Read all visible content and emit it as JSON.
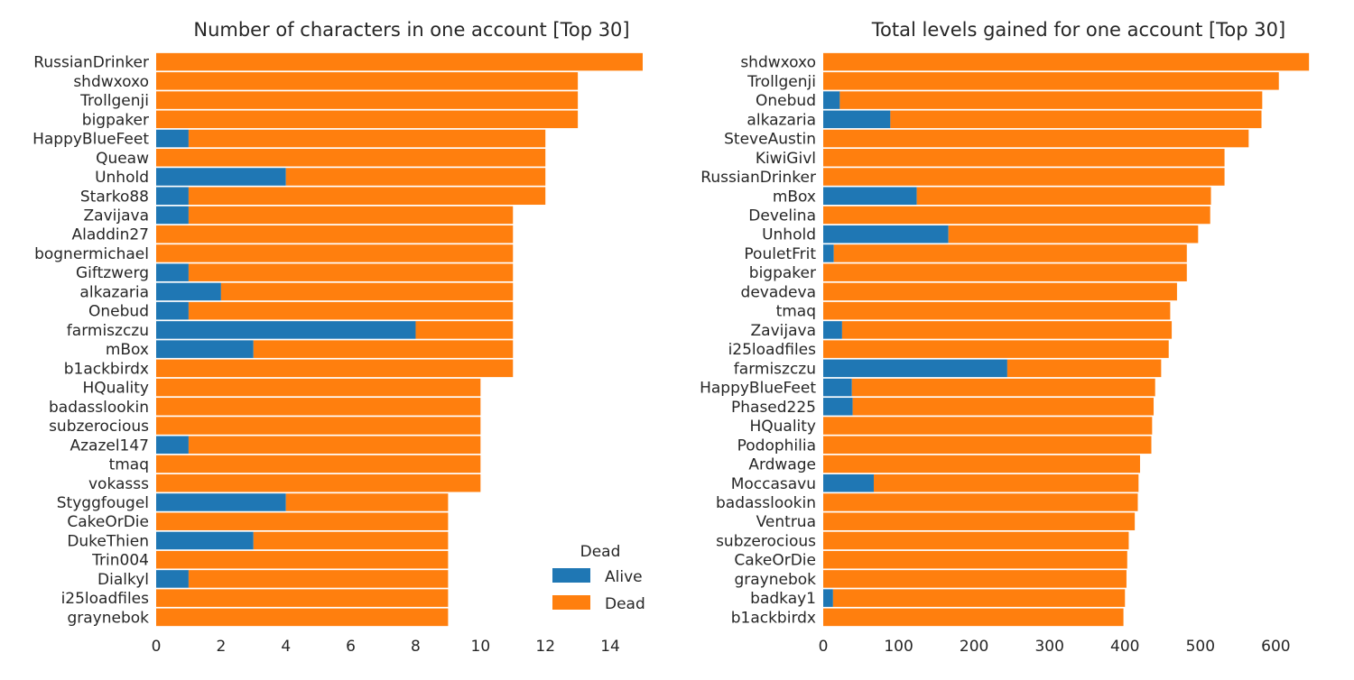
{
  "colors": {
    "alive": "#1f77b4",
    "dead": "#ff7f0e",
    "text": "#262626"
  },
  "legend": {
    "title": "Dead",
    "items": [
      "Alive",
      "Dead"
    ],
    "placement": "lower-right of left chart"
  },
  "chart_data": [
    {
      "type": "bar",
      "orientation": "horizontal",
      "stacked": true,
      "title": "Number of characters in one account [Top 30]",
      "xlabel": "",
      "ylabel": "",
      "xlim": [
        0,
        15
      ],
      "xticks": [
        0,
        2,
        4,
        6,
        8,
        10,
        12,
        14
      ],
      "grid": false,
      "categories": [
        "RussianDrinker",
        "shdwxoxo",
        "Trollgenji",
        "bigpaker",
        "HappyBlueFeet",
        "Queaw",
        "Unhold",
        "Starko88",
        "Zavijava",
        "Aladdin27",
        "bognermichael",
        "Giftzwerg",
        "alkazaria",
        "Onebud",
        "farmiszczu",
        "mBox",
        "b1ackbirdx",
        "HQuality",
        "badasslookin",
        "subzerocious",
        "Azazel147",
        "tmaq",
        "vokasss",
        "Styggfougel",
        "CakeOrDie",
        "DukeThien",
        "Trin004",
        "Dialkyl",
        "i25loadfiles",
        "graynebok"
      ],
      "series": [
        {
          "name": "Alive",
          "values": [
            0,
            0,
            0,
            0,
            1,
            0,
            4,
            1,
            1,
            0,
            0,
            1,
            2,
            1,
            8,
            3,
            0,
            0,
            0,
            0,
            1,
            0,
            0,
            4,
            0,
            3,
            0,
            1,
            0,
            0
          ]
        },
        {
          "name": "Dead",
          "values": [
            15,
            13,
            13,
            13,
            11,
            12,
            8,
            11,
            10,
            11,
            11,
            10,
            9,
            10,
            3,
            8,
            11,
            10,
            10,
            10,
            9,
            10,
            10,
            5,
            9,
            6,
            9,
            8,
            9,
            9
          ]
        }
      ]
    },
    {
      "type": "bar",
      "orientation": "horizontal",
      "stacked": true,
      "title": "Total levels gained for one account [Top 30]",
      "xlabel": "",
      "ylabel": "",
      "xlim": [
        0,
        645
      ],
      "xticks": [
        0,
        100,
        200,
        300,
        400,
        500,
        600
      ],
      "grid": false,
      "categories": [
        "shdwxoxo",
        "Trollgenji",
        "Onebud",
        "alkazaria",
        "SteveAustin",
        "KiwiGivl",
        "RussianDrinker",
        "mBox",
        "Develina",
        "Unhold",
        "PouletFrit",
        "bigpaker",
        "devadeva",
        "tmaq",
        "Zavijava",
        "i25loadfiles",
        "farmiszczu",
        "HappyBlueFeet",
        "Phased225",
        "HQuality",
        "Podophilia",
        "Ardwage",
        "Moccasavu",
        "badasslookin",
        "Ventrua",
        "subzerocious",
        "CakeOrDie",
        "graynebok",
        "badkay1",
        "b1ackbirdx"
      ],
      "series": [
        {
          "name": "Alive",
          "values": [
            0,
            0,
            22,
            89,
            0,
            0,
            0,
            124,
            0,
            166,
            14,
            0,
            0,
            0,
            25,
            0,
            244,
            38,
            39,
            0,
            0,
            0,
            67,
            0,
            0,
            0,
            0,
            0,
            13,
            0
          ]
        },
        {
          "name": "Dead",
          "values": [
            644,
            604,
            560,
            492,
            564,
            532,
            532,
            390,
            513,
            331,
            468,
            482,
            469,
            460,
            437,
            458,
            204,
            402,
            399,
            436,
            435,
            420,
            351,
            417,
            413,
            405,
            403,
            402,
            387,
            398
          ]
        }
      ]
    }
  ]
}
